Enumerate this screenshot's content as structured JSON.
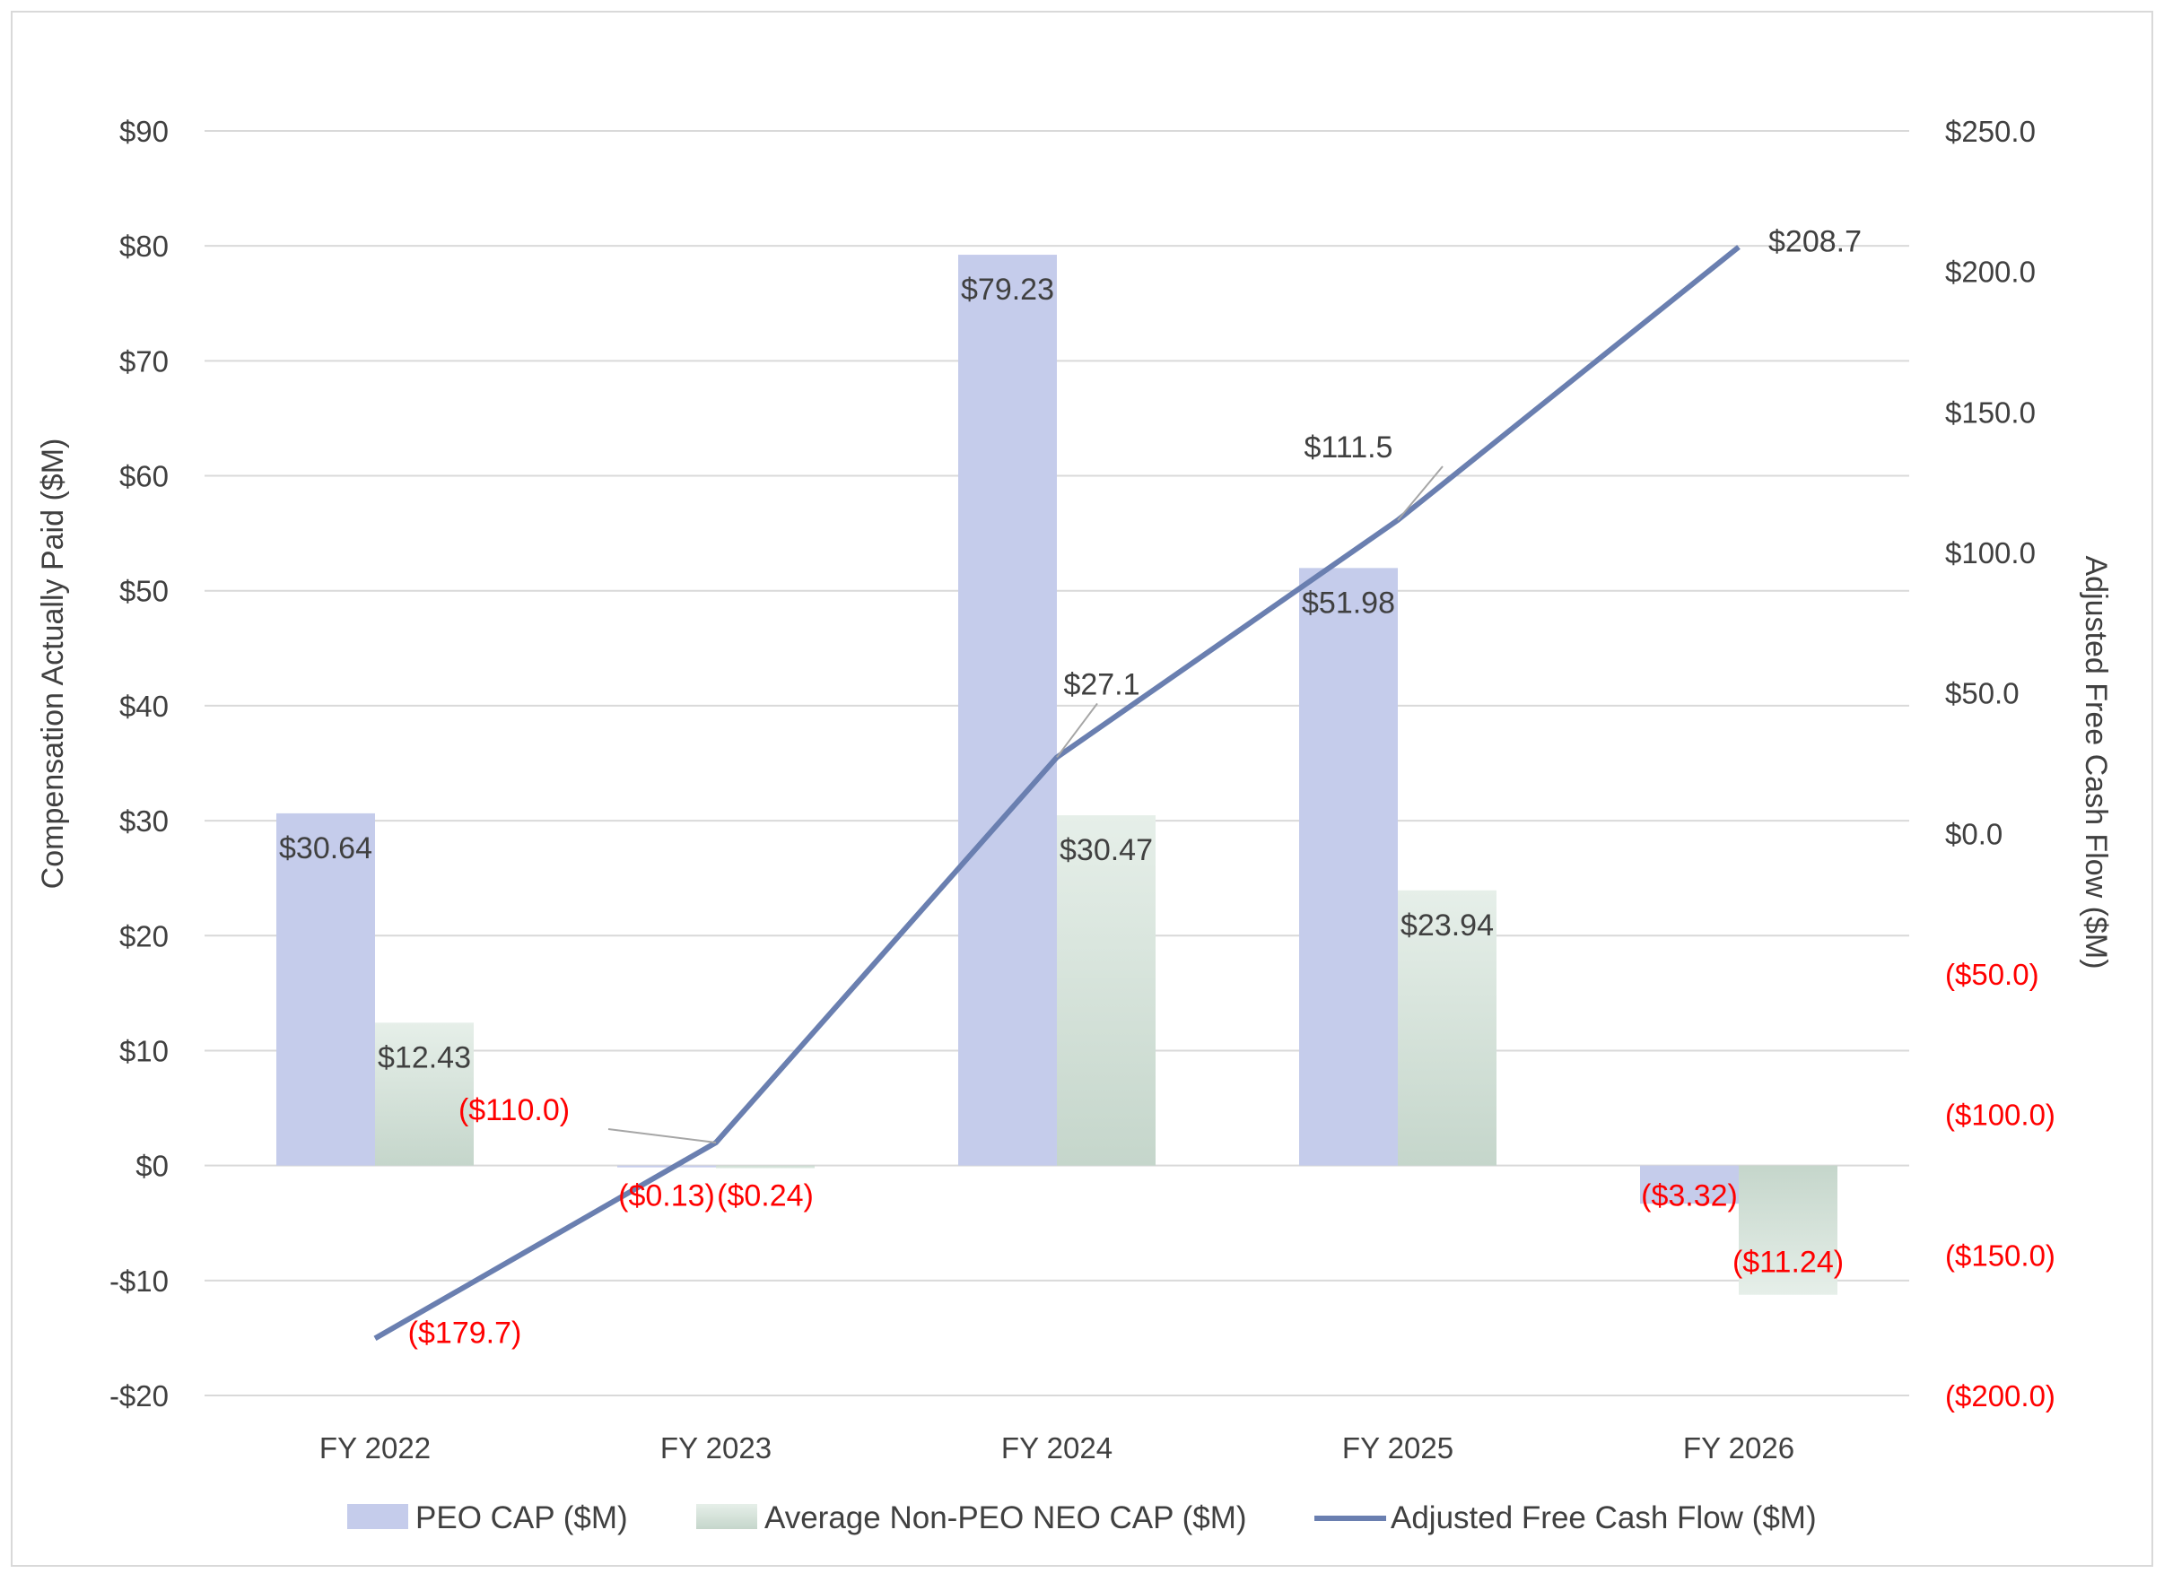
{
  "chart_data": {
    "type": "bar",
    "categories": [
      "FY 2022",
      "FY 2023",
      "FY 2024",
      "FY 2025",
      "FY 2026"
    ],
    "series": [
      {
        "name": "PEO CAP ($M)",
        "type": "bar",
        "axis": "left",
        "values": [
          30.64,
          -0.13,
          79.23,
          51.98,
          -3.32
        ],
        "labels": [
          "$30.64",
          "($0.13)",
          "$79.23",
          "$51.98",
          "($3.32)"
        ]
      },
      {
        "name": "Average Non-PEO NEO CAP ($M)",
        "type": "bar",
        "axis": "left",
        "values": [
          12.43,
          -0.24,
          30.47,
          23.94,
          -11.24
        ],
        "labels": [
          "$12.43",
          "($0.24)",
          "$30.47",
          "$23.94",
          "($11.24)"
        ]
      },
      {
        "name": "Adjusted Free Cash Flow ($M)",
        "type": "line",
        "axis": "right",
        "values": [
          -179.7,
          -110.0,
          27.1,
          111.5,
          208.7
        ],
        "labels": [
          "($179.7)",
          "($110.0)",
          "$27.1",
          "$111.5",
          "$208.7"
        ]
      }
    ],
    "y_left": {
      "label": "Compensation Actually Paid ($M)",
      "range": [
        -20,
        90
      ],
      "ticks": [
        90,
        80,
        70,
        60,
        50,
        40,
        30,
        20,
        10,
        0,
        -10,
        -20
      ],
      "tick_labels": [
        "$90",
        "$80",
        "$70",
        "$60",
        "$50",
        "$40",
        "$30",
        "$20",
        "$10",
        "$0",
        "-$10",
        "-$20"
      ]
    },
    "y_right": {
      "label": "Adjusted Free Cash Flow ($M)",
      "range": [
        -200,
        250
      ],
      "ticks": [
        250,
        200,
        150,
        100,
        50,
        0,
        -50,
        -100,
        -150,
        -200
      ],
      "tick_labels": [
        "$250.0",
        "$200.0",
        "$150.0",
        "$100.0",
        "$50.0",
        "$0.0",
        "($50.0)",
        "($100.0)",
        "($150.0)",
        "($200.0)"
      ]
    },
    "grid": true,
    "legend_position": "bottom",
    "colors": {
      "peo_bar": "#c5cceb",
      "neo_bar_top": "#e6efe9",
      "neo_bar_bottom": "#c5d6cb",
      "line": "#6a7fb0",
      "negative_text": "#ff0000",
      "text": "#404040",
      "grid": "#d9d9d9",
      "border": "#d9d9d9"
    }
  }
}
